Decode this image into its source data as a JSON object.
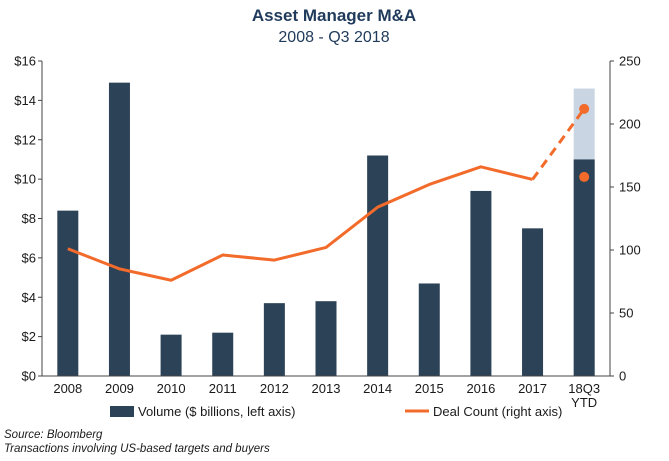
{
  "chart_data": {
    "type": "bar",
    "title": "Asset Manager M&A",
    "subtitle": "2008 - Q3 2018",
    "categories": [
      "2008",
      "2009",
      "2010",
      "2011",
      "2012",
      "2013",
      "2014",
      "2015",
      "2016",
      "2017",
      "18Q3 YTD"
    ],
    "category_lines": [
      [
        "2008"
      ],
      [
        "2009"
      ],
      [
        "2010"
      ],
      [
        "2011"
      ],
      [
        "2012"
      ],
      [
        "2013"
      ],
      [
        "2014"
      ],
      [
        "2015"
      ],
      [
        "2016"
      ],
      [
        "2017"
      ],
      [
        "18Q3",
        "YTD"
      ]
    ],
    "series": [
      {
        "name": "Volume ($ billions, left axis)",
        "type": "bar",
        "axis": "left",
        "color": "#2c4257",
        "values": [
          8.4,
          14.9,
          2.1,
          2.2,
          3.7,
          3.8,
          11.2,
          4.7,
          9.4,
          7.5,
          11.0
        ],
        "projected_total": 14.6,
        "projected_color": "#c9d5e2"
      },
      {
        "name": "Deal Count (right axis)",
        "type": "line",
        "axis": "right",
        "color": "#f26b2b",
        "values": [
          101,
          85,
          76,
          96,
          92,
          102,
          134,
          152,
          166,
          156,
          158
        ],
        "projected_value": 212
      }
    ],
    "left_axis": {
      "min": 0,
      "max": 16,
      "step": 2,
      "prefix": "$"
    },
    "right_axis": {
      "min": 0,
      "max": 250,
      "step": 50
    },
    "legend_position": "bottom",
    "grid": false
  },
  "notes": {
    "source": "Source: Bloomberg",
    "description": "Transactions involving US-based targets and buyers"
  }
}
